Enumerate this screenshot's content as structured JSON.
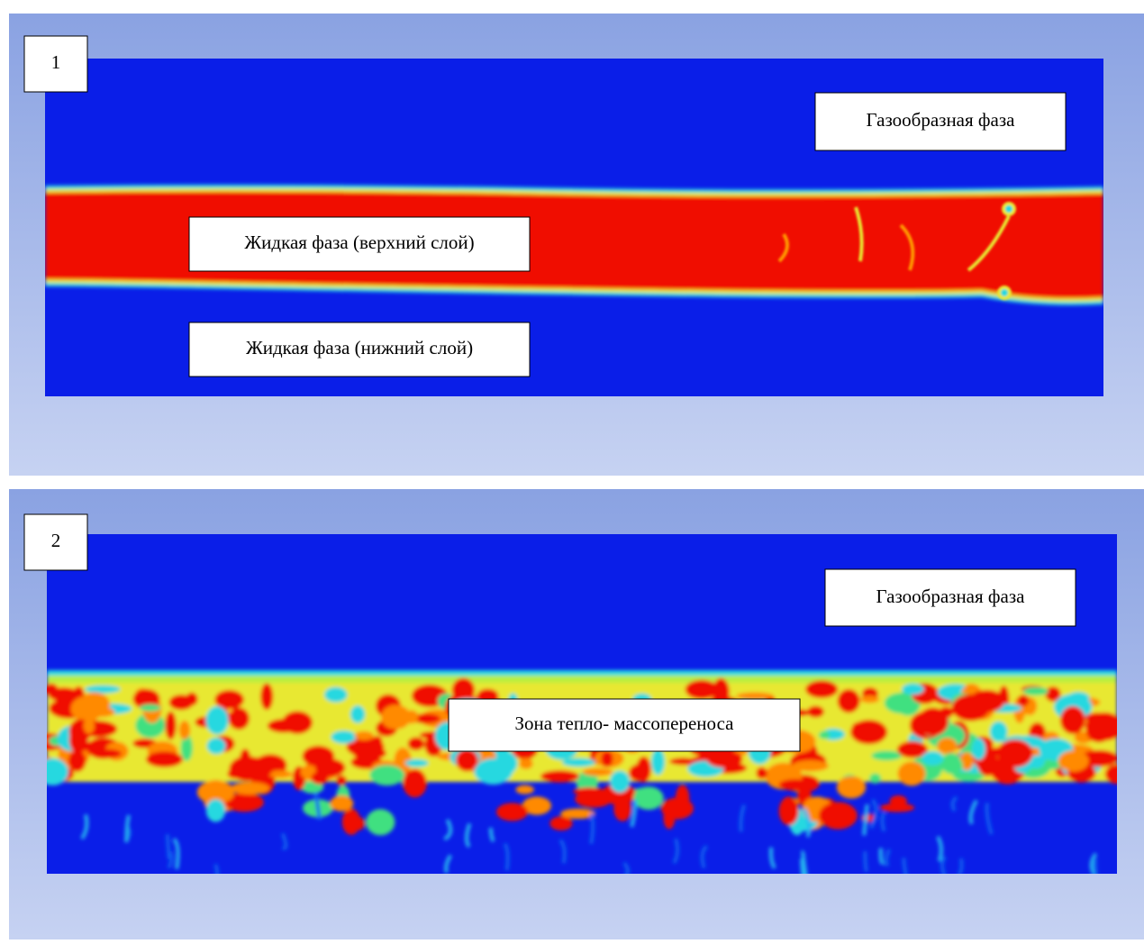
{
  "panels": [
    {
      "number": "1",
      "labels": [
        "Газообразная фаза",
        "Жидкая фаза (верхний слой)",
        "Жидкая фаза (нижний слой)"
      ]
    },
    {
      "number": "2",
      "labels": [
        "Газообразная фаза",
        "Зона тепло- массопереноса"
      ]
    }
  ]
}
